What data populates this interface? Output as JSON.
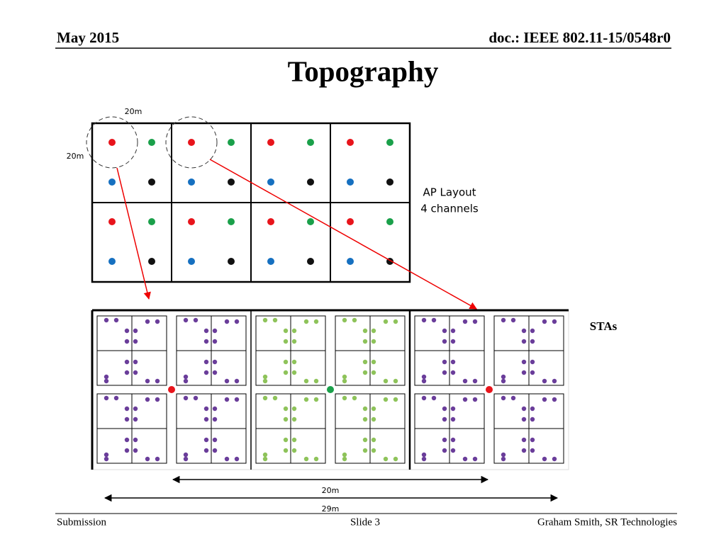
{
  "header": {
    "date": "May 2015",
    "doc": "doc.: IEEE 802.11-15/0548r0"
  },
  "title": "Topography",
  "diagram": {
    "circle_width_label": "20m",
    "circle_height_label": "20m",
    "ap_layout": {
      "line1": "AP Layout",
      "line2": "4 channels"
    },
    "stas_label": "STAs",
    "span_inner_label": "20m",
    "span_outer_label": "29m"
  },
  "footer": {
    "left": "Submission",
    "center": "Slide 3",
    "right": "Graham Smith, SR Technologies"
  }
}
